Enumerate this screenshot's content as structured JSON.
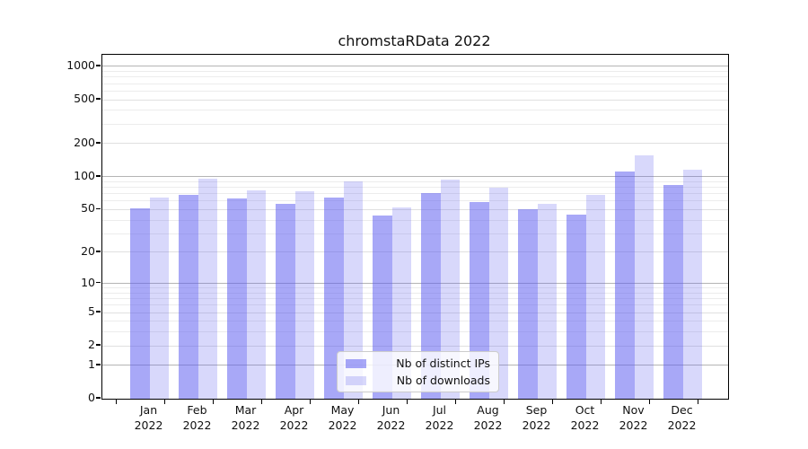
{
  "title": "chromstaRData 2022",
  "chart_data": {
    "type": "bar",
    "title": "chromstaRData 2022",
    "categories": [
      "Jan",
      "Feb",
      "Mar",
      "Apr",
      "May",
      "Jun",
      "Jul",
      "Aug",
      "Sep",
      "Oct",
      "Nov",
      "Dec"
    ],
    "year_label": "2022",
    "series": [
      {
        "name": "Nb of distinct IPs",
        "color": "rgba(90,90,240,0.53)",
        "values": [
          51,
          68,
          63,
          57,
          64,
          44,
          71,
          59,
          50,
          45,
          112,
          84
        ]
      },
      {
        "name": "Nb of downloads",
        "color": "rgba(90,90,240,0.24)",
        "values": [
          65,
          96,
          75,
          73,
          90,
          52,
          95,
          80,
          56,
          68,
          156,
          116
        ]
      }
    ],
    "yscale": "log1p",
    "yticks": [
      0,
      1,
      2,
      5,
      10,
      20,
      50,
      100,
      200,
      500,
      1000
    ],
    "ylim": [
      0,
      1275
    ],
    "xlabel": "",
    "ylabel": "",
    "grid": true,
    "legend_position": "bottom-center",
    "colors": {
      "grid_major": "#b5b5b5",
      "grid_minor": "#ececec",
      "frame": "#000000",
      "background": "#ffffff"
    }
  }
}
